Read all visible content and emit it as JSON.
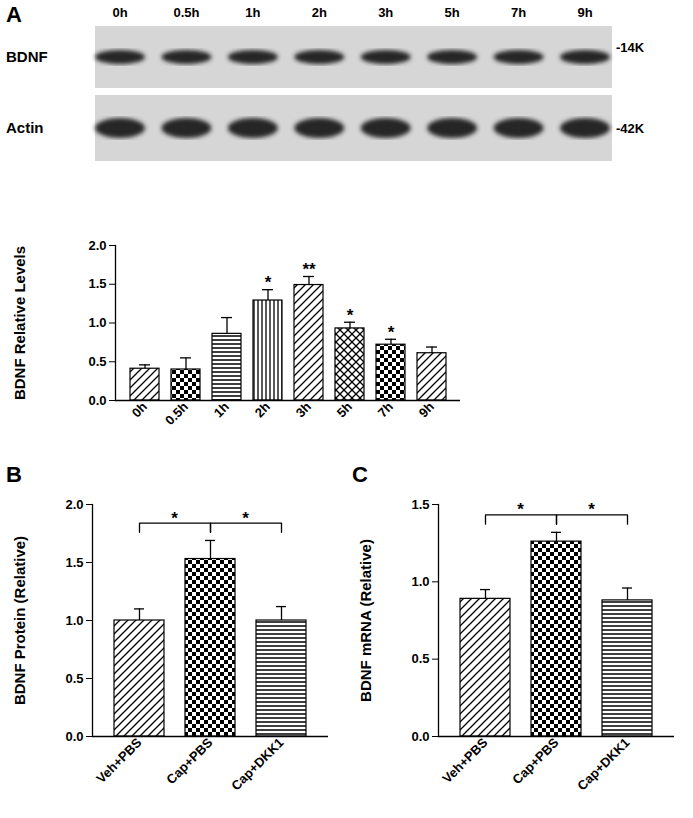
{
  "blot": {
    "lanes": [
      "0h",
      "0.5h",
      "1h",
      "2h",
      "3h",
      "5h",
      "7h",
      "9h"
    ],
    "rows": [
      {
        "label": "BDNF",
        "size": "-14K"
      },
      {
        "label": "Actin",
        "size": "-42K"
      }
    ]
  },
  "chart_data": [
    {
      "type": "bar",
      "panel_label": "A",
      "y_label": "BDNF Relative Levels",
      "categories": [
        "0h",
        "0.5h",
        "1h",
        "2h",
        "3h",
        "5h",
        "7h",
        "9h"
      ],
      "values": [
        0.41,
        0.4,
        0.86,
        1.29,
        1.49,
        0.93,
        0.72,
        0.61
      ],
      "errors": [
        0.05,
        0.15,
        0.21,
        0.14,
        0.11,
        0.08,
        0.07,
        0.08
      ],
      "significance": [
        null,
        null,
        null,
        "*",
        "**",
        "*",
        "*",
        null
      ],
      "color": "#000000",
      "ylim": [
        0,
        2
      ],
      "yticks": [
        {
          "value": 0,
          "label": "0.0"
        },
        {
          "value": 0.5,
          "label": "0.5"
        },
        {
          "value": 1,
          "label": "1.0"
        },
        {
          "value": 1.5,
          "label": "1.5"
        },
        {
          "value": 2,
          "label": "2.0"
        }
      ],
      "grid": false
    },
    {
      "type": "bar",
      "panel_label": "B",
      "y_label": "BDNF Protein (Relative)",
      "categories": [
        "Veh+PBS",
        "Cap+PBS",
        "Cap+DKK1"
      ],
      "values": [
        1.0,
        1.53,
        1.0
      ],
      "errors": [
        0.1,
        0.16,
        0.12
      ],
      "comparisons": [
        {
          "from": "Veh+PBS",
          "to": "Cap+PBS",
          "label": "*"
        },
        {
          "from": "Cap+PBS",
          "to": "Cap+DKK1",
          "label": "*"
        }
      ],
      "color": "#000000",
      "ylim": [
        0,
        2
      ],
      "yticks": [
        {
          "value": 0,
          "label": "0.0"
        },
        {
          "value": 0.5,
          "label": "0.5"
        },
        {
          "value": 1,
          "label": "1.0"
        },
        {
          "value": 1.5,
          "label": "1.5"
        },
        {
          "value": 2,
          "label": "2.0"
        }
      ],
      "grid": false
    },
    {
      "type": "bar",
      "panel_label": "C",
      "y_label": "BDNF mRNA (Relative)",
      "categories": [
        "Veh+PBS",
        "Cap+PBS",
        "Cap+DKK1"
      ],
      "values": [
        0.89,
        1.26,
        0.88
      ],
      "errors": [
        0.06,
        0.06,
        0.08
      ],
      "comparisons": [
        {
          "from": "Veh+PBS",
          "to": "Cap+PBS",
          "label": "*"
        },
        {
          "from": "Cap+PBS",
          "to": "Cap+DKK1",
          "label": "*"
        }
      ],
      "color": "#000000",
      "ylim": [
        0,
        1.5
      ],
      "yticks": [
        {
          "value": 0,
          "label": "0.0"
        },
        {
          "value": 0.5,
          "label": "0.5"
        },
        {
          "value": 1,
          "label": "1.0"
        },
        {
          "value": 1.5,
          "label": "1.5"
        }
      ],
      "grid": false
    }
  ]
}
